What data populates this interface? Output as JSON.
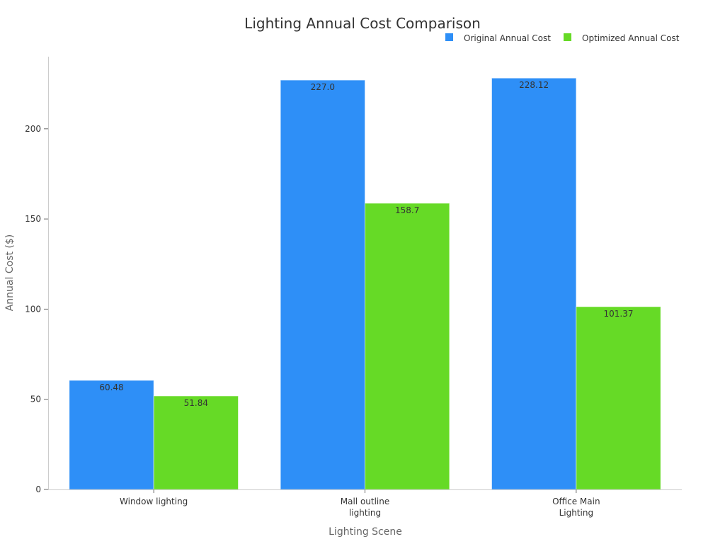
{
  "chart_data": {
    "type": "bar",
    "title": "Lighting Annual Cost Comparison",
    "xlabel": "Lighting Scene",
    "ylabel": "Annual Cost ($)",
    "categories": [
      "Window lighting",
      "Mall outline lighting",
      "Office Main Lighting"
    ],
    "series": [
      {
        "name": "Original Annual Cost",
        "color": "#2E8FF7",
        "values": [
          60.48,
          227.0,
          228.12
        ],
        "labels": [
          "60.48",
          "227.0",
          "228.12"
        ]
      },
      {
        "name": "Optimized Annual Cost",
        "color": "#66DA26",
        "values": [
          51.84,
          158.7,
          101.37
        ],
        "labels": [
          "51.84",
          "158.7",
          "101.37"
        ]
      }
    ],
    "ylim": [
      0,
      240
    ],
    "yticks": [
      0,
      50,
      100,
      150,
      200
    ],
    "grid": false,
    "legend": "top-right"
  }
}
